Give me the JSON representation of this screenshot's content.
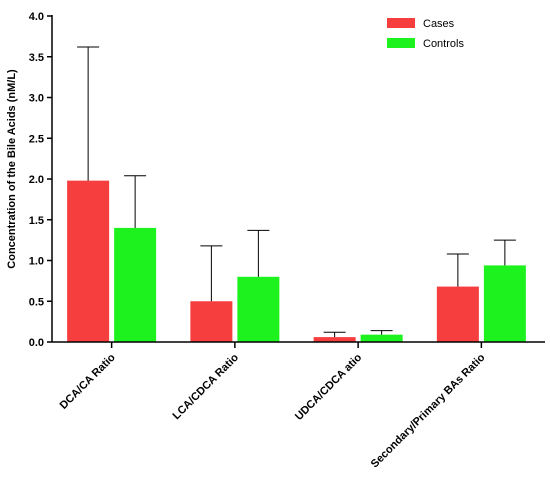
{
  "chart_data": {
    "type": "bar",
    "title": "",
    "xlabel": "",
    "ylabel": "Concentration of the Bile Acids (nM/L)",
    "ylim": [
      0,
      4.0
    ],
    "yticks": [
      "0.0",
      "0.5",
      "1.0",
      "1.5",
      "2.0",
      "2.5",
      "3.0",
      "3.5",
      "4.0"
    ],
    "categories": [
      "DCA/CA Ratio",
      "LCA/CDCA Ratio",
      "UDCA/CDCA atio",
      "Secondary/Primary BAs Ratio"
    ],
    "series": [
      {
        "name": "Cases",
        "color": "#f73e3e",
        "values": [
          1.98,
          0.5,
          0.06,
          0.68
        ],
        "error_upper": [
          3.62,
          1.18,
          0.12,
          1.08
        ]
      },
      {
        "name": "Controls",
        "color": "#1ef21e",
        "values": [
          1.4,
          0.8,
          0.09,
          0.94
        ],
        "error_upper": [
          2.04,
          1.37,
          0.14,
          1.25
        ]
      }
    ],
    "grid": false,
    "legend_position": "top-right"
  }
}
